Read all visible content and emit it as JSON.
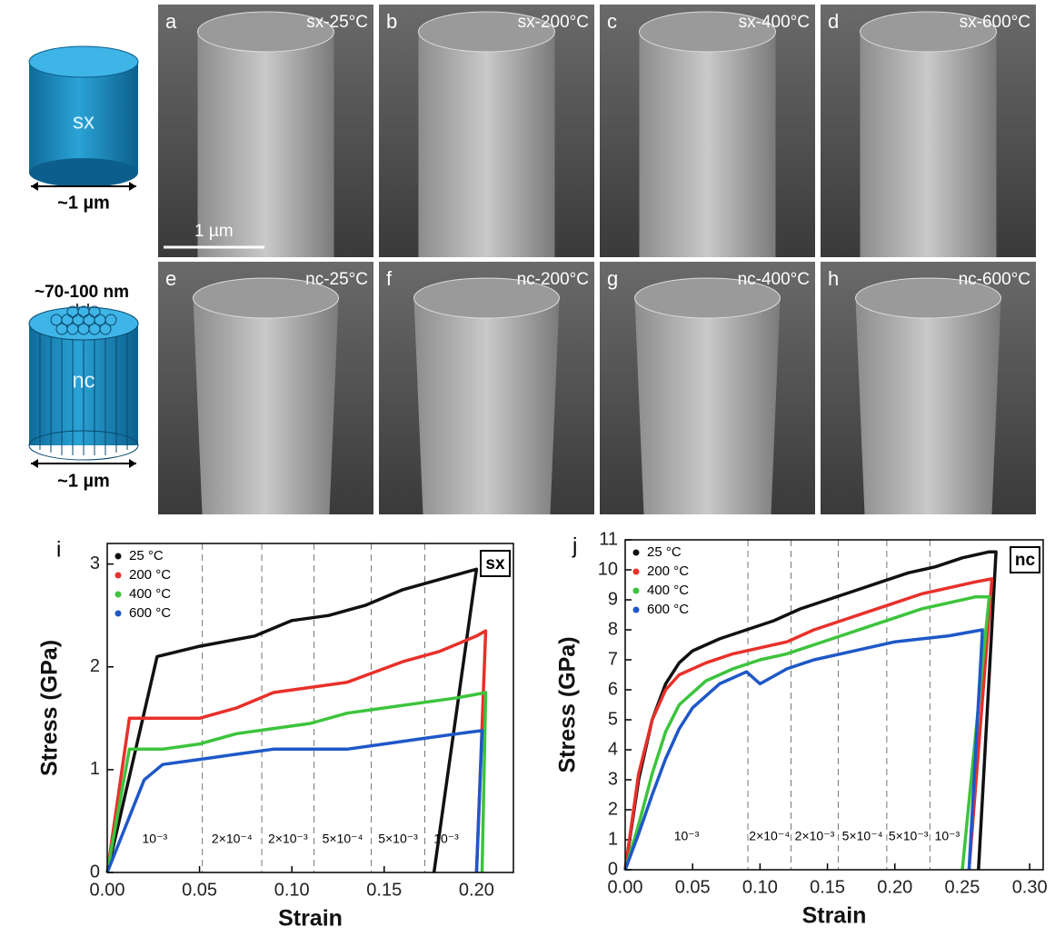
{
  "schematics": {
    "sx_label": "sx",
    "sx_size": "~1 µm",
    "nc_grain": "~70-100 nm",
    "nc_label": "nc",
    "nc_size": "~1 µm"
  },
  "panels": [
    {
      "letter": "a",
      "label": "sx-25°C"
    },
    {
      "letter": "b",
      "label": "sx-200°C"
    },
    {
      "letter": "c",
      "label": "sx-400°C"
    },
    {
      "letter": "d",
      "label": "sx-600°C"
    },
    {
      "letter": "e",
      "label": "nc-25°C"
    },
    {
      "letter": "f",
      "label": "nc-200°C"
    },
    {
      "letter": "g",
      "label": "nc-400°C"
    },
    {
      "letter": "h",
      "label": "nc-600°C"
    }
  ],
  "scale_bar": "1 µm",
  "chart_data": [
    {
      "type": "line",
      "panel": "i",
      "tag": "sx",
      "x_label": "Strain",
      "y_label": "Stress (GPa)",
      "legend": "upper left",
      "xlim": [
        0,
        0.22
      ],
      "ylim": [
        0,
        3.2
      ],
      "xticks": [
        {
          "value": 0,
          "label": "0.00"
        },
        {
          "value": 0.05,
          "label": "0.05"
        },
        {
          "value": 0.1,
          "label": "0.10"
        },
        {
          "value": 0.15,
          "label": "0.15"
        },
        {
          "value": 0.2,
          "label": "0.20"
        }
      ],
      "yticks": [
        0,
        1,
        2,
        3
      ],
      "rate_changes": [
        0.0515,
        0.0837,
        0.112,
        0.143,
        0.172
      ],
      "rate_labels": [
        "10⁻³",
        "2×10⁻⁴",
        "2×10⁻³",
        "5×10⁻⁴",
        "5×10⁻³",
        "10⁻³"
      ],
      "series": [
        {
          "name": "25 °C",
          "color": "#111111",
          "x": [
            0,
            0.027,
            0.05,
            0.08,
            0.1,
            0.12,
            0.14,
            0.16,
            0.18,
            0.2,
            0.177
          ],
          "values": [
            0,
            2.1,
            2.2,
            2.3,
            2.45,
            2.5,
            2.6,
            2.75,
            2.85,
            2.95,
            0
          ]
        },
        {
          "name": "200 °C",
          "color": "#e8302a",
          "x": [
            0,
            0.012,
            0.03,
            0.05,
            0.07,
            0.09,
            0.11,
            0.13,
            0.145,
            0.16,
            0.18,
            0.2,
            0.205,
            0.2
          ],
          "values": [
            0,
            1.5,
            1.5,
            1.5,
            1.6,
            1.75,
            1.8,
            1.85,
            1.95,
            2.05,
            2.15,
            2.3,
            2.35,
            0
          ]
        },
        {
          "name": "400 °C",
          "color": "#3cc43c",
          "x": [
            0,
            0.012,
            0.03,
            0.05,
            0.07,
            0.09,
            0.11,
            0.13,
            0.15,
            0.17,
            0.19,
            0.205,
            0.203
          ],
          "values": [
            0,
            1.2,
            1.2,
            1.25,
            1.35,
            1.4,
            1.45,
            1.55,
            1.6,
            1.65,
            1.7,
            1.75,
            0
          ]
        },
        {
          "name": "600 °C",
          "color": "#1e58c8",
          "x": [
            0,
            0.02,
            0.03,
            0.05,
            0.07,
            0.09,
            0.11,
            0.13,
            0.15,
            0.17,
            0.19,
            0.203,
            0.2
          ],
          "values": [
            0,
            0.9,
            1.05,
            1.1,
            1.15,
            1.2,
            1.2,
            1.2,
            1.25,
            1.3,
            1.35,
            1.38,
            0
          ]
        }
      ]
    },
    {
      "type": "line",
      "panel": "j",
      "tag": "nc",
      "x_label": "Strain",
      "y_label": "Stress (GPa)",
      "legend": "upper left",
      "xlim": [
        0,
        0.31
      ],
      "ylim": [
        0,
        11
      ],
      "xticks": [
        {
          "value": 0,
          "label": "0.00"
        },
        {
          "value": 0.05,
          "label": "0.05"
        },
        {
          "value": 0.1,
          "label": "0.10"
        },
        {
          "value": 0.15,
          "label": "0.15"
        },
        {
          "value": 0.2,
          "label": "0.20"
        },
        {
          "value": 0.25,
          "label": "0.25"
        },
        {
          "value": 0.3,
          "label": "0.30"
        }
      ],
      "yticks": [
        0,
        1,
        2,
        3,
        4,
        5,
        6,
        7,
        8,
        9,
        10,
        11
      ],
      "rate_changes": [
        0.091,
        0.123,
        0.158,
        0.194,
        0.226
      ],
      "rate_labels": [
        "10⁻³",
        "2×10⁻⁴",
        "2×10⁻³",
        "5×10⁻⁴",
        "5×10⁻³",
        "10⁻³"
      ],
      "series": [
        {
          "name": "25 °C",
          "color": "#111111",
          "x": [
            0,
            0.01,
            0.02,
            0.03,
            0.04,
            0.05,
            0.07,
            0.09,
            0.11,
            0.13,
            0.15,
            0.17,
            0.19,
            0.21,
            0.23,
            0.25,
            0.27,
            0.275,
            0.262
          ],
          "values": [
            0,
            3,
            5,
            6.2,
            6.9,
            7.3,
            7.7,
            8,
            8.3,
            8.7,
            9,
            9.3,
            9.6,
            9.9,
            10.1,
            10.4,
            10.6,
            10.6,
            0
          ]
        },
        {
          "name": "200 °C",
          "color": "#e8302a",
          "x": [
            0,
            0.01,
            0.02,
            0.03,
            0.04,
            0.06,
            0.08,
            0.1,
            0.12,
            0.14,
            0.16,
            0.18,
            0.2,
            0.22,
            0.24,
            0.26,
            0.272,
            0.255
          ],
          "values": [
            0,
            3.2,
            5,
            6,
            6.5,
            6.9,
            7.2,
            7.4,
            7.6,
            8,
            8.3,
            8.6,
            8.9,
            9.2,
            9.4,
            9.6,
            9.7,
            0
          ]
        },
        {
          "name": "400 °C",
          "color": "#3cc43c",
          "x": [
            0,
            0.01,
            0.02,
            0.03,
            0.04,
            0.06,
            0.08,
            0.1,
            0.12,
            0.14,
            0.16,
            0.18,
            0.2,
            0.22,
            0.24,
            0.26,
            0.27,
            0.25
          ],
          "values": [
            0,
            1.5,
            3.2,
            4.6,
            5.5,
            6.3,
            6.7,
            7,
            7.2,
            7.5,
            7.8,
            8.1,
            8.4,
            8.7,
            8.9,
            9.1,
            9.1,
            0
          ]
        },
        {
          "name": "600 °C",
          "color": "#1e58c8",
          "x": [
            0,
            0.01,
            0.02,
            0.03,
            0.04,
            0.05,
            0.07,
            0.09,
            0.1,
            0.12,
            0.14,
            0.16,
            0.18,
            0.2,
            0.22,
            0.24,
            0.265,
            0.255
          ],
          "values": [
            0,
            1.2,
            2.5,
            3.7,
            4.7,
            5.4,
            6.2,
            6.6,
            6.2,
            6.7,
            7,
            7.2,
            7.4,
            7.6,
            7.7,
            7.8,
            8,
            0
          ]
        }
      ]
    }
  ]
}
